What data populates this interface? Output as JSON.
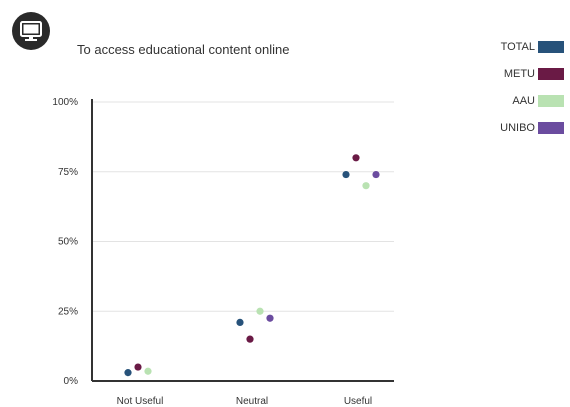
{
  "header": {
    "icon": "monitor-icon",
    "title": "To access educational content online"
  },
  "chart_data": {
    "type": "scatter",
    "title": "To access educational content online",
    "categories": [
      "Not Useful",
      "Neutral",
      "Useful"
    ],
    "y_ticks": [
      "0%",
      "25%",
      "50%",
      "75%",
      "100%"
    ],
    "ylim": [
      0,
      100
    ],
    "grid": true,
    "legend_position": "top-right",
    "series": [
      {
        "name": "TOTAL",
        "color": "#27527a",
        "values": [
          3,
          21,
          74
        ]
      },
      {
        "name": "METU",
        "color": "#6a1a45",
        "values": [
          5,
          15,
          80
        ]
      },
      {
        "name": "AAU",
        "color": "#b9e2b2",
        "values": [
          3.5,
          25,
          70
        ]
      },
      {
        "name": "UNIBO",
        "color": "#6b4c9f",
        "values": [
          0,
          22.5,
          74
        ]
      }
    ]
  }
}
